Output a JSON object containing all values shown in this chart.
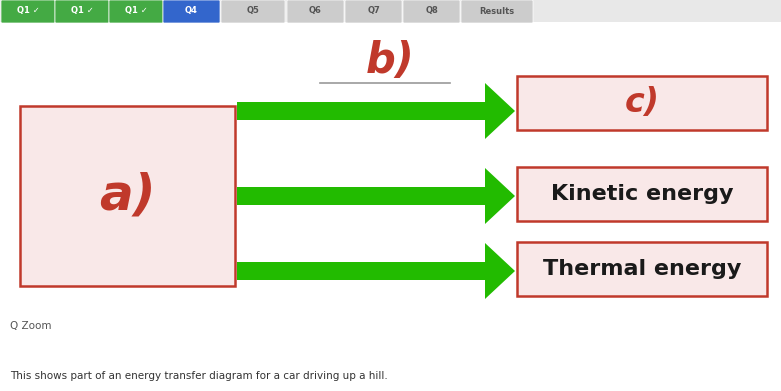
{
  "bg_color": "#e8e8e8",
  "diagram_bg": "#f0eeee",
  "box_fill": "#f9e8e8",
  "box_edge": "#c0392b",
  "label_a": "a)",
  "label_b": "b)",
  "label_c": "c)",
  "label_kinetic": "Kinetic energy",
  "label_thermal": "Thermal energy",
  "arrow_color": "#22bb00",
  "label_color": "#c0392b",
  "text_color": "#1a1a1a",
  "footer_text": "This shows part of an energy transfer diagram for a car driving up a hill.",
  "zoom_label": "Q Zoom",
  "nav_labels": [
    "Q1 ✓",
    "Q1 ✓",
    "Q1 ✓",
    "Q4",
    "Q5",
    "Q6",
    "Q7",
    "Q8",
    "Results"
  ],
  "nav_bg": [
    "#44aa44",
    "#44aa44",
    "#44aa44",
    "#3366cc",
    "#cccccc",
    "#cccccc",
    "#cccccc",
    "#cccccc",
    "#cccccc"
  ],
  "nav_tc": [
    "white",
    "white",
    "white",
    "white",
    "#555555",
    "#555555",
    "#555555",
    "#555555",
    "#555555"
  ]
}
